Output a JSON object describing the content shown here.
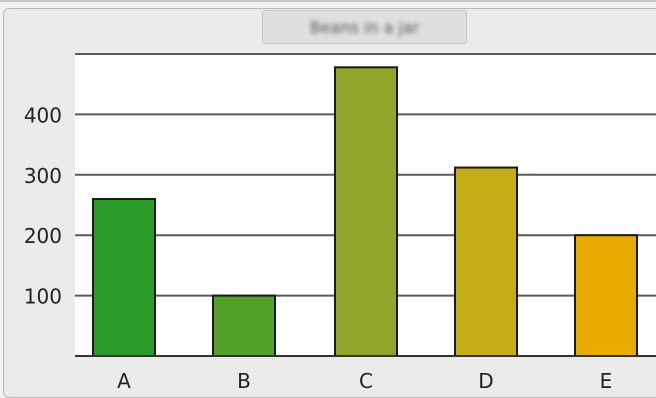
{
  "window": {
    "title": "Beans in a jar"
  },
  "chart_data": {
    "type": "bar",
    "title": "Beans in a jar",
    "xlabel": "",
    "ylabel": "",
    "categories": [
      "A",
      "B",
      "C",
      "D",
      "E"
    ],
    "values": [
      260,
      100,
      478,
      312,
      200
    ],
    "colors": [
      "#2a9a2a",
      "#54a12a",
      "#93a42a",
      "#c3ad14",
      "#e8ab00"
    ],
    "bar_edge_color": "#1a1a1a",
    "yticks": [
      100,
      200,
      300,
      400
    ],
    "ylim": [
      0,
      500
    ],
    "grid": true,
    "legend": false
  }
}
